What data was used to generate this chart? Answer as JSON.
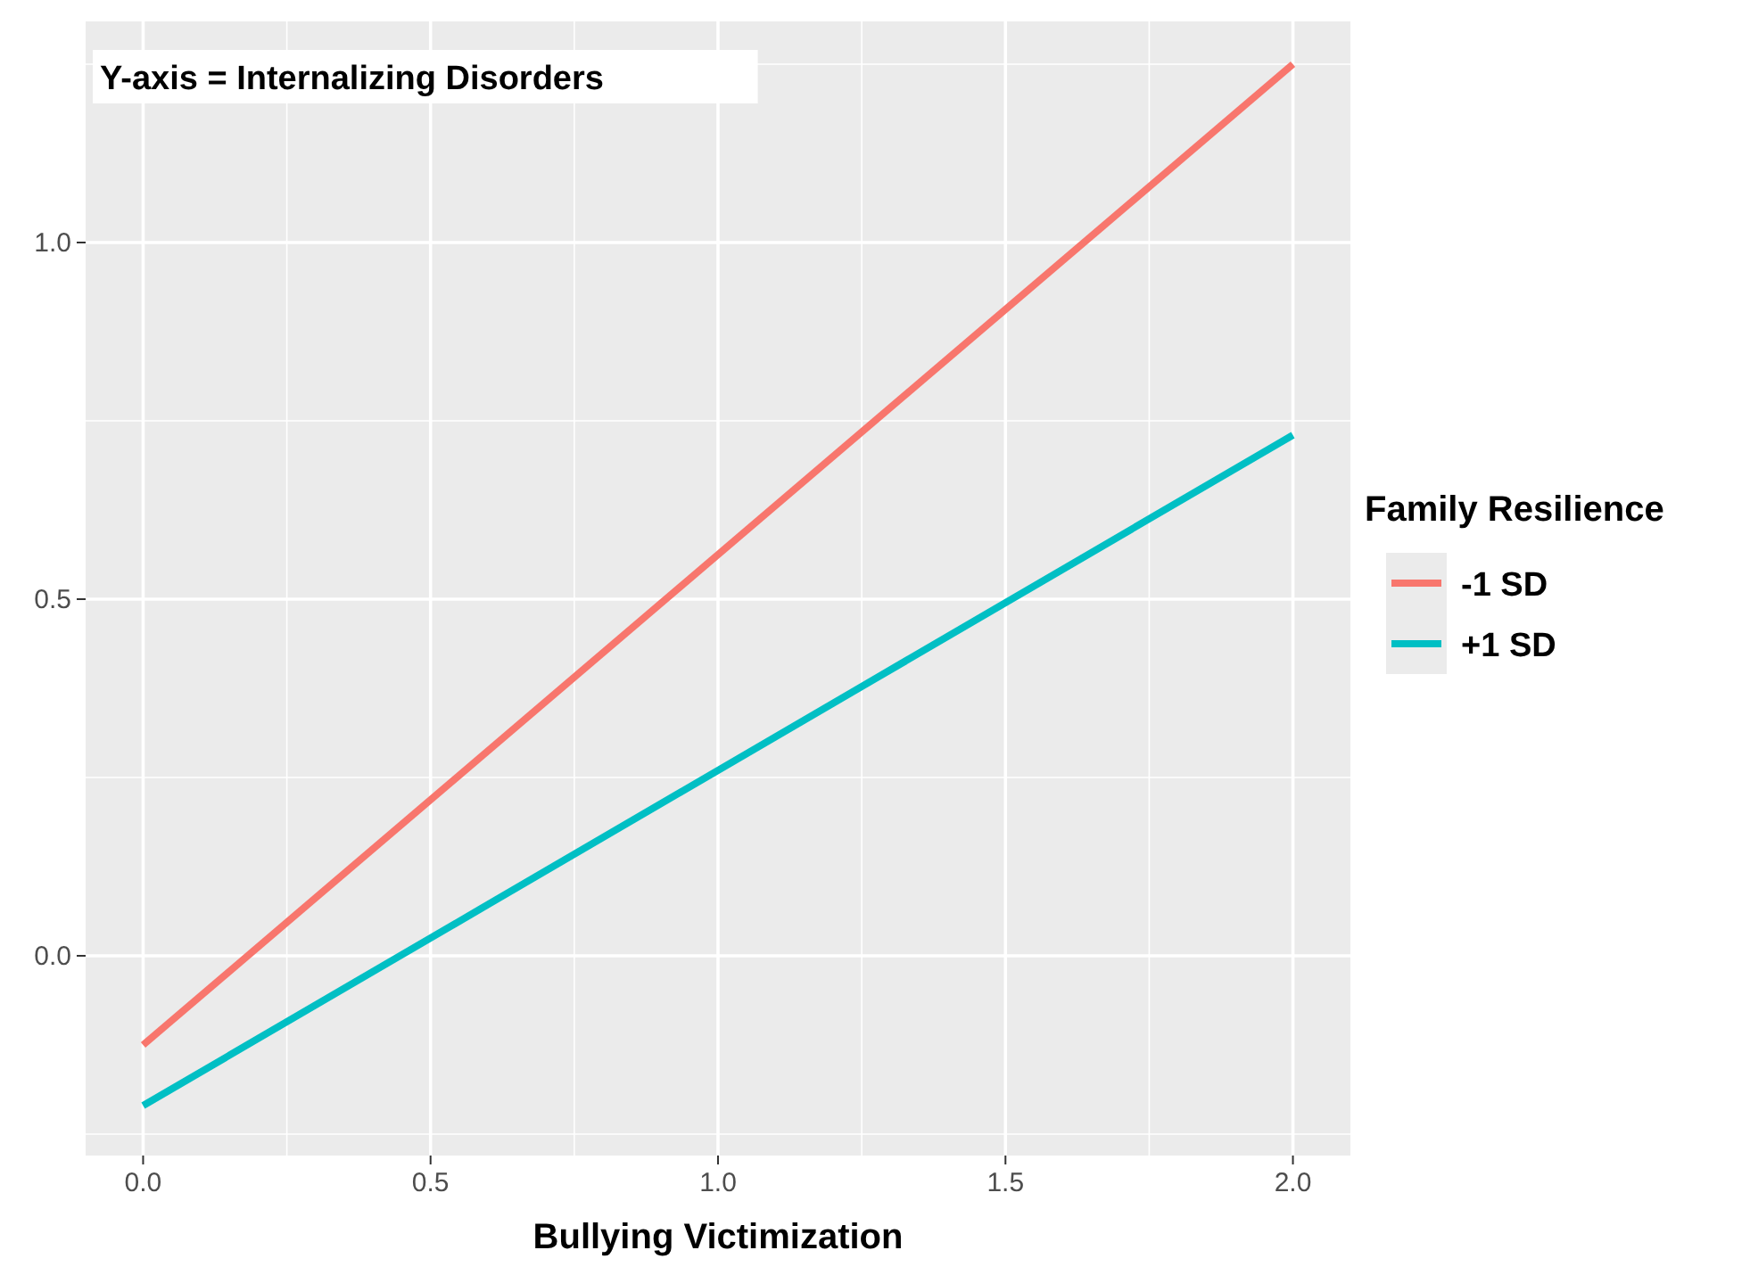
{
  "chart_data": {
    "type": "line",
    "xlabel": "Bullying Victimization",
    "legend_title": "Family Resilience",
    "annotations": [
      "Y-axis = Internalizing Disorders"
    ],
    "series": [
      {
        "name": "-1 SD",
        "color": "#f8766d",
        "values": [
          -0.125,
          1.25
        ]
      },
      {
        "name": "+1 SD",
        "color": "#00bfc4",
        "values": [
          -0.21,
          0.73
        ]
      }
    ],
    "x": [
      0,
      2
    ],
    "xlim": [
      -0.1,
      2.1
    ],
    "xticks": [
      {
        "value": 0,
        "label": "0.0"
      },
      0.5,
      {
        "value": 1,
        "label": "1.0"
      },
      1.5,
      {
        "value": 2,
        "label": "2.0"
      }
    ],
    "ylim": [
      -0.28,
      1.31
    ],
    "yticks": [
      {
        "value": 0,
        "label": "0.0"
      },
      0.5,
      {
        "value": 1,
        "label": "1.0"
      }
    ],
    "grid": true,
    "legend": "right",
    "line_style": "solid",
    "marker": "none"
  }
}
